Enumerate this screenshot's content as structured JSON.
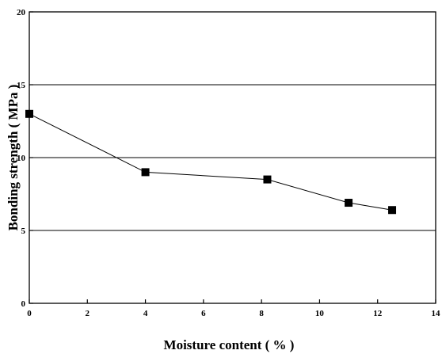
{
  "chart_data": {
    "type": "line",
    "title": "",
    "xlabel": "Moisture content ( % )",
    "ylabel": "Bonding strength ( MPa )",
    "xlim": [
      0,
      14
    ],
    "ylim": [
      0,
      20
    ],
    "x_ticks": [
      0,
      2,
      4,
      6,
      8,
      10,
      12,
      14
    ],
    "y_ticks": [
      0,
      5,
      10,
      15,
      20
    ],
    "grid": "horizontal",
    "legend": "none",
    "series": [
      {
        "x": [
          0,
          4,
          8.2,
          11,
          12.5
        ],
        "y": [
          13.0,
          9.0,
          8.5,
          6.9,
          6.4
        ],
        "marker": "square",
        "color": "#000000"
      }
    ]
  }
}
